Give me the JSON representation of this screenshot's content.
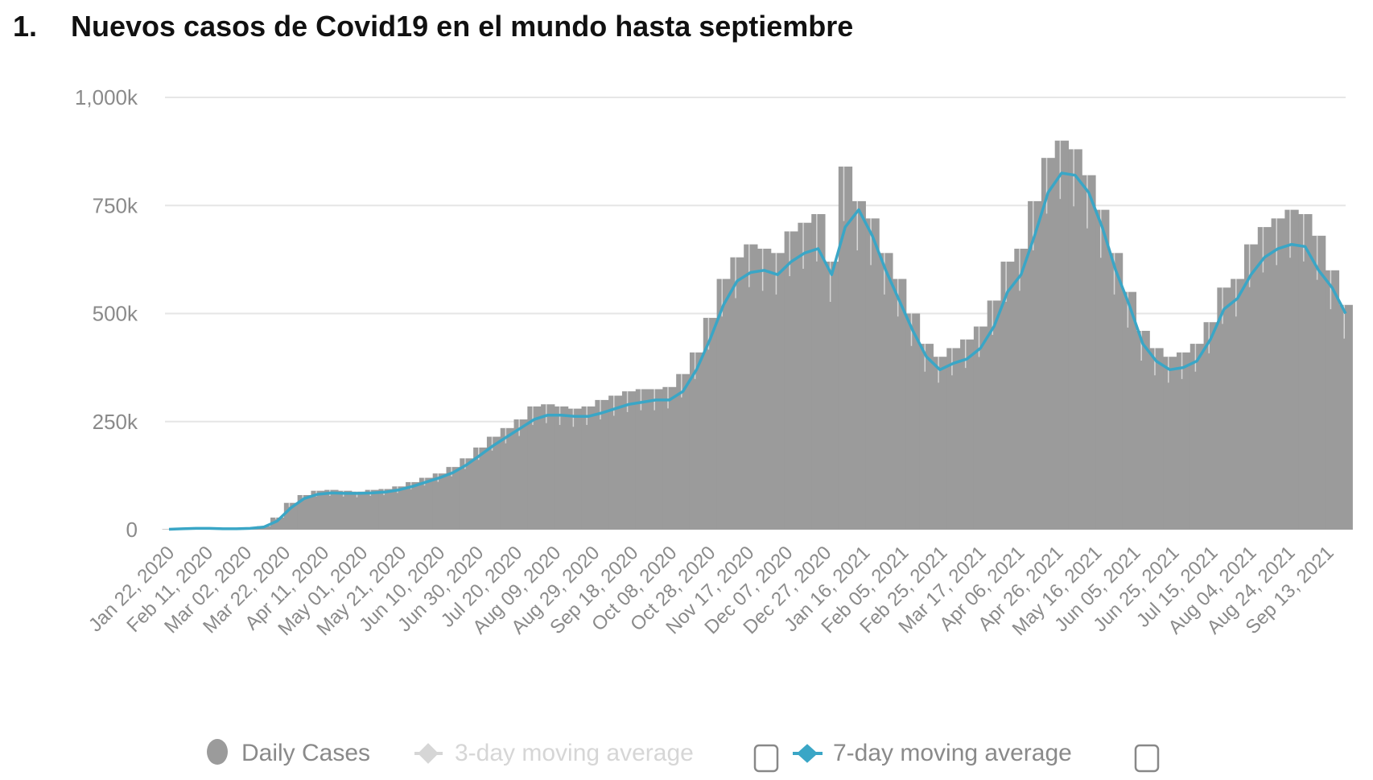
{
  "title": {
    "number": "1.",
    "text": "Nuevos casos de Covid19 en el mundo hasta septiembre"
  },
  "chart_data": {
    "type": "bar",
    "title": "Nuevos casos de Covid19 en el mundo hasta septiembre",
    "xlabel": "",
    "ylabel": "",
    "ylim": [
      0,
      1000000
    ],
    "grid": true,
    "legend_placement": "bottom",
    "colors": {
      "daily_cases": "#9b9b9b",
      "avg7": "#3aa6c6",
      "avg3_disabled": "#d6d6d6",
      "grid": "#e6e6e6",
      "text": "#8a8a8a"
    },
    "y_ticks": [
      {
        "value": 0,
        "label": "0"
      },
      {
        "value": 250000,
        "label": "250k"
      },
      {
        "value": 500000,
        "label": "500k"
      },
      {
        "value": 750000,
        "label": "750k"
      },
      {
        "value": 1000000,
        "label": "1,000k"
      }
    ],
    "x_ticks": [
      {
        "date": "2020-01-22",
        "label": "Jan 22, 2020"
      },
      {
        "date": "2020-02-11",
        "label": "Feb 11, 2020"
      },
      {
        "date": "2020-03-02",
        "label": "Mar 02, 2020"
      },
      {
        "date": "2020-03-22",
        "label": "Mar 22, 2020"
      },
      {
        "date": "2020-04-11",
        "label": "Apr 11, 2020"
      },
      {
        "date": "2020-05-01",
        "label": "May 01, 2020"
      },
      {
        "date": "2020-05-21",
        "label": "May 21, 2020"
      },
      {
        "date": "2020-06-10",
        "label": "Jun 10, 2020"
      },
      {
        "date": "2020-06-30",
        "label": "Jun 30, 2020"
      },
      {
        "date": "2020-07-20",
        "label": "Jul 20, 2020"
      },
      {
        "date": "2020-08-09",
        "label": "Aug 09, 2020"
      },
      {
        "date": "2020-08-29",
        "label": "Aug 29, 2020"
      },
      {
        "date": "2020-09-18",
        "label": "Sep 18, 2020"
      },
      {
        "date": "2020-10-08",
        "label": "Oct 08, 2020"
      },
      {
        "date": "2020-10-28",
        "label": "Oct 28, 2020"
      },
      {
        "date": "2020-11-17",
        "label": "Nov 17, 2020"
      },
      {
        "date": "2020-12-07",
        "label": "Dec 07, 2020"
      },
      {
        "date": "2020-12-27",
        "label": "Dec 27, 2020"
      },
      {
        "date": "2021-01-16",
        "label": "Jan 16, 2021"
      },
      {
        "date": "2021-02-05",
        "label": "Feb 05, 2021"
      },
      {
        "date": "2021-02-25",
        "label": "Feb 25, 2021"
      },
      {
        "date": "2021-03-17",
        "label": "Mar 17, 2021"
      },
      {
        "date": "2021-04-06",
        "label": "Apr 06, 2021"
      },
      {
        "date": "2021-04-26",
        "label": "Apr 26, 2021"
      },
      {
        "date": "2021-05-16",
        "label": "May 16, 2021"
      },
      {
        "date": "2021-06-05",
        "label": "Jun 05, 2021"
      },
      {
        "date": "2021-06-25",
        "label": "Jun 25, 2021"
      },
      {
        "date": "2021-07-15",
        "label": "Jul 15, 2021"
      },
      {
        "date": "2021-08-04",
        "label": "Aug 04, 2021"
      },
      {
        "date": "2021-08-24",
        "label": "Aug 24, 2021"
      },
      {
        "date": "2021-09-13",
        "label": "Sep 13, 2021"
      }
    ],
    "x": [
      "2020-01-22",
      "2020-01-29",
      "2020-02-05",
      "2020-02-12",
      "2020-02-19",
      "2020-02-26",
      "2020-03-04",
      "2020-03-11",
      "2020-03-18",
      "2020-03-25",
      "2020-04-01",
      "2020-04-08",
      "2020-04-15",
      "2020-04-22",
      "2020-04-29",
      "2020-05-06",
      "2020-05-13",
      "2020-05-20",
      "2020-05-27",
      "2020-06-03",
      "2020-06-10",
      "2020-06-17",
      "2020-06-24",
      "2020-07-01",
      "2020-07-08",
      "2020-07-15",
      "2020-07-22",
      "2020-07-29",
      "2020-08-05",
      "2020-08-12",
      "2020-08-19",
      "2020-08-26",
      "2020-09-02",
      "2020-09-09",
      "2020-09-16",
      "2020-09-23",
      "2020-09-30",
      "2020-10-07",
      "2020-10-14",
      "2020-10-21",
      "2020-10-28",
      "2020-11-04",
      "2020-11-11",
      "2020-11-18",
      "2020-11-25",
      "2020-12-02",
      "2020-12-09",
      "2020-12-16",
      "2020-12-23",
      "2020-12-30",
      "2021-01-06",
      "2021-01-13",
      "2021-01-20",
      "2021-01-27",
      "2021-02-03",
      "2021-02-10",
      "2021-02-17",
      "2021-02-24",
      "2021-03-03",
      "2021-03-10",
      "2021-03-17",
      "2021-03-24",
      "2021-03-31",
      "2021-04-07",
      "2021-04-14",
      "2021-04-21",
      "2021-04-28",
      "2021-05-05",
      "2021-05-12",
      "2021-05-19",
      "2021-05-26",
      "2021-06-02",
      "2021-06-09",
      "2021-06-16",
      "2021-06-23",
      "2021-06-30",
      "2021-07-07",
      "2021-07-14",
      "2021-07-21",
      "2021-07-28",
      "2021-08-04",
      "2021-08-11",
      "2021-08-18",
      "2021-08-25",
      "2021-09-01",
      "2021-09-08",
      "2021-09-15",
      "2021-09-22"
    ],
    "series": [
      {
        "name": "Daily Cases",
        "values": [
          1000,
          3000,
          4000,
          3000,
          2000,
          3000,
          4000,
          8000,
          28000,
          62000,
          80000,
          90000,
          92000,
          90000,
          88000,
          92000,
          94000,
          100000,
          110000,
          120000,
          130000,
          145000,
          165000,
          190000,
          215000,
          235000,
          255000,
          285000,
          290000,
          285000,
          280000,
          285000,
          300000,
          310000,
          320000,
          325000,
          325000,
          330000,
          360000,
          410000,
          490000,
          580000,
          630000,
          660000,
          650000,
          640000,
          690000,
          710000,
          730000,
          620000,
          840000,
          760000,
          720000,
          640000,
          580000,
          500000,
          430000,
          400000,
          420000,
          440000,
          470000,
          530000,
          620000,
          650000,
          760000,
          860000,
          900000,
          880000,
          820000,
          740000,
          640000,
          550000,
          460000,
          420000,
          400000,
          410000,
          430000,
          480000,
          560000,
          580000,
          660000,
          700000,
          720000,
          740000,
          730000,
          680000,
          600000,
          520000
        ]
      },
      {
        "name": "7-day moving average",
        "values": [
          1000,
          2000,
          3000,
          3000,
          2000,
          2000,
          3000,
          6000,
          20000,
          50000,
          72000,
          82000,
          85000,
          84000,
          84000,
          85000,
          87000,
          92000,
          100000,
          110000,
          120000,
          132000,
          150000,
          172000,
          195000,
          215000,
          235000,
          255000,
          265000,
          265000,
          262000,
          262000,
          270000,
          280000,
          290000,
          295000,
          300000,
          300000,
          320000,
          370000,
          440000,
          520000,
          575000,
          595000,
          600000,
          590000,
          620000,
          640000,
          650000,
          590000,
          700000,
          740000,
          680000,
          600000,
          530000,
          460000,
          400000,
          370000,
          385000,
          395000,
          420000,
          470000,
          550000,
          590000,
          680000,
          780000,
          825000,
          820000,
          780000,
          700000,
          600000,
          520000,
          430000,
          390000,
          370000,
          375000,
          390000,
          440000,
          510000,
          535000,
          590000,
          630000,
          650000,
          660000,
          655000,
          600000,
          560000,
          500000
        ]
      }
    ]
  },
  "legend": {
    "daily_cases": "Daily Cases",
    "avg3": "3-day moving average",
    "avg7": "7-day moving average"
  }
}
